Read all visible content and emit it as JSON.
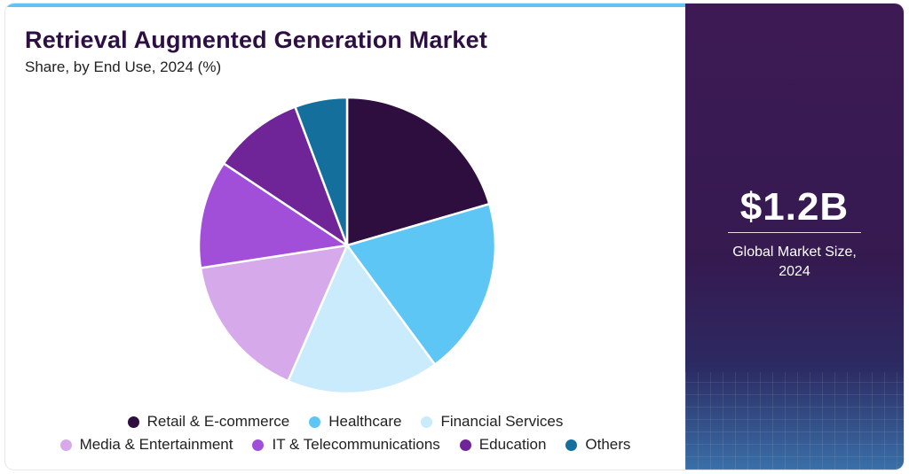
{
  "header": {
    "title": "Retrieval Augmented Generation Market",
    "subtitle": "Share, by End Use, 2024 (%)"
  },
  "chart_data": {
    "type": "pie",
    "title": "Retrieval Augmented Generation Market",
    "subtitle": "Share, by End Use, 2024 (%)",
    "categories": [
      "Retail & E-commerce",
      "Healthcare",
      "Financial Services",
      "Media & Entertainment",
      "IT & Telecommunications",
      "Education",
      "Others"
    ],
    "values": [
      21.2,
      20.1,
      17.2,
      16.6,
      12.2,
      10.3,
      5.9
    ],
    "colors": [
      "#2e0d3f",
      "#5ec6f5",
      "#c9ebfb",
      "#d5a9ea",
      "#a14ed9",
      "#6f2497",
      "#146f9c"
    ],
    "legend_placement": "bottom"
  },
  "legend": {
    "row1": [
      {
        "label": "Retail & E-commerce",
        "color": "#2e0d3f"
      },
      {
        "label": "Healthcare",
        "color": "#5ec6f5"
      },
      {
        "label": "Financial Services",
        "color": "#c9ebfb"
      }
    ],
    "row2": [
      {
        "label": "Media & Entertainment",
        "color": "#d5a9ea"
      },
      {
        "label": "IT & Telecommunications",
        "color": "#a14ed9"
      },
      {
        "label": "Education",
        "color": "#6f2497"
      },
      {
        "label": "Others",
        "color": "#146f9c"
      }
    ]
  },
  "sidebar": {
    "value": "$1.2B",
    "caption_line1": "Global Market Size,",
    "caption_line2": "2024"
  }
}
